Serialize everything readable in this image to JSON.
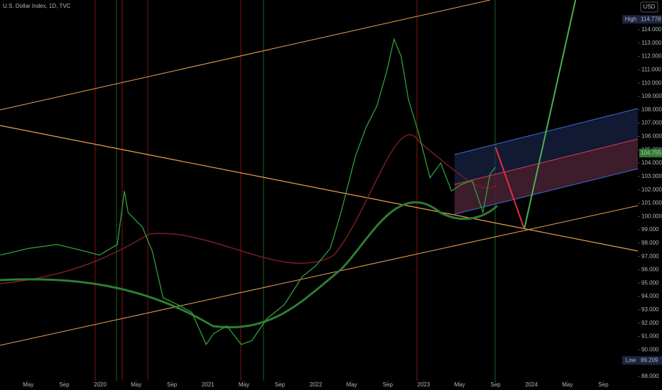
{
  "chart_data": {
    "type": "line",
    "title": "U.S. Dollar Index, 1D, TVC",
    "currency": "USD",
    "xlim": [
      -11.15,
      59.84
    ],
    "ylim": [
      87.68,
      116.23
    ],
    "xticks": [
      {
        "value": -8,
        "label": "May"
      },
      {
        "value": -4,
        "label": "Sep"
      },
      {
        "value": 0,
        "label": "2020"
      },
      {
        "value": 4,
        "label": "May"
      },
      {
        "value": 8,
        "label": "Sep"
      },
      {
        "value": 12,
        "label": "2021"
      },
      {
        "value": 16,
        "label": "May"
      },
      {
        "value": 20,
        "label": "Sep"
      },
      {
        "value": 24,
        "label": "2022"
      },
      {
        "value": 28,
        "label": "May"
      },
      {
        "value": 32,
        "label": "Sep"
      },
      {
        "value": 36,
        "label": "2023"
      },
      {
        "value": 40,
        "label": "May"
      },
      {
        "value": 44,
        "label": "Sep"
      },
      {
        "value": 48,
        "label": "2024"
      },
      {
        "value": 52,
        "label": "May"
      },
      {
        "value": 56,
        "label": "Sep"
      }
    ],
    "yticks": [
      {
        "value": 88,
        "label": "88.000"
      },
      {
        "value": 89,
        "label": "89.000"
      },
      {
        "value": 90,
        "label": "90.000"
      },
      {
        "value": 91,
        "label": "91.000"
      },
      {
        "value": 92,
        "label": "92.000"
      },
      {
        "value": 93,
        "label": "93.000"
      },
      {
        "value": 94,
        "label": "94.000"
      },
      {
        "value": 95,
        "label": "95.000"
      },
      {
        "value": 96,
        "label": "96.000"
      },
      {
        "value": 97,
        "label": "97.000"
      },
      {
        "value": 98,
        "label": "98.000"
      },
      {
        "value": 99,
        "label": "99.000"
      },
      {
        "value": 100,
        "label": "100.000"
      },
      {
        "value": 101,
        "label": "101.000"
      },
      {
        "value": 102,
        "label": "102.000"
      },
      {
        "value": 103,
        "label": "103.000"
      },
      {
        "value": 104,
        "label": "104.000"
      },
      {
        "value": 105,
        "label": "105.000"
      },
      {
        "value": 106,
        "label": "106.000"
      },
      {
        "value": 107,
        "label": "107.000"
      },
      {
        "value": 108,
        "label": "108.000"
      },
      {
        "value": 109,
        "label": "109.000"
      },
      {
        "value": 110,
        "label": "110.000"
      },
      {
        "value": 111,
        "label": "111.000"
      },
      {
        "value": 112,
        "label": "112.000"
      },
      {
        "value": 113,
        "label": "113.000"
      },
      {
        "value": 114,
        "label": "114.000"
      }
    ],
    "series": [
      {
        "color": "#2f9e3a",
        "x": [
          -11.1,
          -8.0,
          -4.8,
          -1.7,
          -0.1,
          1.9,
          2.7,
          3.1,
          4.7,
          5.8,
          7.0,
          8.6,
          10.2,
          11.8,
          12.6,
          14.1,
          15.7,
          16.9,
          18.5,
          20.5,
          22.5,
          24.0,
          25.6,
          26.8,
          28.4,
          29.6,
          30.8,
          31.9,
          32.7,
          33.5,
          34.3,
          35.5,
          36.7,
          37.9,
          39.1,
          40.2,
          41.4,
          42.6,
          43.4,
          44.0
        ],
        "values": [
          97.1,
          97.6,
          97.9,
          97.4,
          97.1,
          97.9,
          101.9,
          100.3,
          99.2,
          97.4,
          93.9,
          93.4,
          92.8,
          90.4,
          91.2,
          91.8,
          90.4,
          90.7,
          92.3,
          93.4,
          95.5,
          96.3,
          97.6,
          100.3,
          104.5,
          106.7,
          108.3,
          110.9,
          113.3,
          112.0,
          108.8,
          106.1,
          102.9,
          104.0,
          101.9,
          102.4,
          102.7,
          100.3,
          103.2,
          103.7
        ]
      },
      {
        "color": "#e0303a",
        "x": [
          44.0,
          47.2
        ],
        "values": [
          105.2,
          99.06
        ]
      },
      {
        "color": "#4caf50",
        "x": [
          47.2,
          52.9
        ],
        "values": [
          99.06,
          116.23
        ]
      }
    ],
    "high": {
      "label": "High",
      "value": 114.778
    },
    "last": 104.755,
    "low": {
      "label": "Low",
      "value": 89.209
    }
  }
}
